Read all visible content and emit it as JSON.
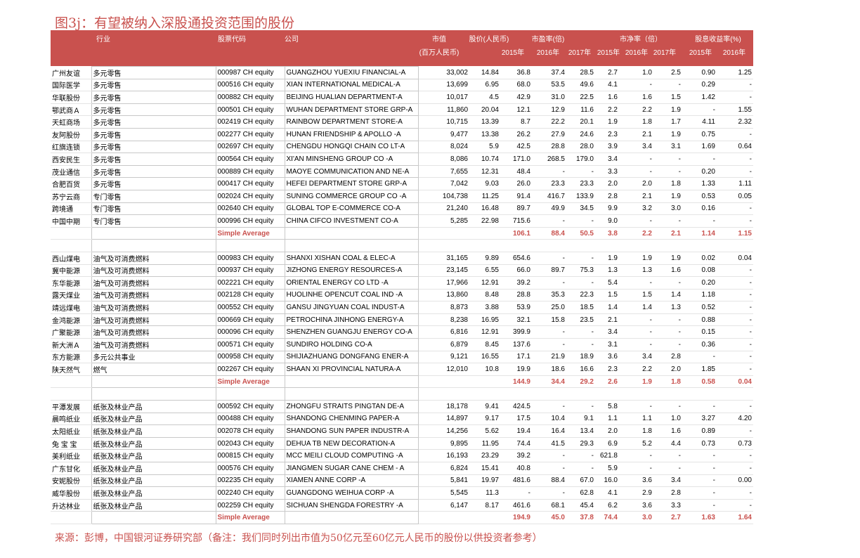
{
  "title": "图3j：有望被纳入深股通投资范围的股份",
  "header": {
    "industry": "行业",
    "code": "股票代码",
    "company": "公司",
    "mcap": "市值",
    "mcap_unit": "(百万人民币)",
    "price": "股价(人民币)",
    "pe": "市盈率(倍)",
    "pb": "市净率（倍）",
    "dy": "股息收益率(%)",
    "years": [
      "2015年",
      "2016年",
      "2017年",
      "2015年",
      "2016年",
      "2017年",
      "2015年",
      "2016年"
    ]
  },
  "groups": [
    {
      "rows": [
        [
          "广州友谊",
          "多元零售",
          "000987 CH equity",
          "GUANGZHOU YUEXIU FINANCIAL-A",
          "33,002",
          "14.84",
          "36.8",
          "37.4",
          "28.5",
          "2.7",
          "1.0",
          "2.5",
          "0.90",
          "1.25"
        ],
        [
          "国际医学",
          "多元零售",
          "000516 CH equity",
          "XIAN INTERNATIONAL MEDICAL-A",
          "13,699",
          "6.95",
          "68.0",
          "53.5",
          "49.6",
          "4.1",
          "-",
          "-",
          "0.29",
          "-"
        ],
        [
          "华联股份",
          "多元零售",
          "000882 CH equity",
          "BEIJING HUALIAN DEPARTMENT-A",
          "10,017",
          "4.5",
          "42.9",
          "31.0",
          "22.5",
          "1.6",
          "1.6",
          "1.5",
          "1.42",
          "-"
        ],
        [
          "鄂武商Ａ",
          "多元零售",
          "000501 CH equity",
          "WUHAN DEPARTMENT STORE GRP-A",
          "11,860",
          "20.04",
          "12.1",
          "12.9",
          "11.6",
          "2.2",
          "2.2",
          "1.9",
          "-",
          "1.55"
        ],
        [
          "天虹商场",
          "多元零售",
          "002419 CH equity",
          "RAINBOW DEPARTMENT STORE-A",
          "10,715",
          "13.39",
          "8.7",
          "22.2",
          "20.1",
          "1.9",
          "1.8",
          "1.7",
          "4.11",
          "2.32"
        ],
        [
          "友阿股份",
          "多元零售",
          "002277 CH equity",
          "HUNAN FRIENDSHIP & APOLLO -A",
          "9,477",
          "13.38",
          "26.2",
          "27.9",
          "24.6",
          "2.3",
          "2.1",
          "1.9",
          "0.75",
          "-"
        ],
        [
          "红旗连锁",
          "多元零售",
          "002697 CH equity",
          "CHENGDU HONGQI CHAIN CO LT-A",
          "8,024",
          "5.9",
          "42.5",
          "28.8",
          "28.0",
          "3.9",
          "3.4",
          "3.1",
          "1.69",
          "0.64"
        ],
        [
          "西安民生",
          "多元零售",
          "000564 CH equity",
          "XI'AN MINSHENG GROUP CO -A",
          "8,086",
          "10.74",
          "171.0",
          "268.5",
          "179.0",
          "3.4",
          "-",
          "-",
          "-",
          "-"
        ],
        [
          "茂业通信",
          "多元零售",
          "000889 CH equity",
          "MAOYE COMMUNICATION AND NE-A",
          "7,655",
          "12.31",
          "48.4",
          "-",
          "-",
          "3.3",
          "-",
          "-",
          "0.20",
          "-"
        ],
        [
          "合肥百货",
          "多元零售",
          "000417 CH equity",
          "HEFEI DEPARTMENT STORE GRP-A",
          "7,042",
          "9.03",
          "26.0",
          "23.3",
          "23.3",
          "2.0",
          "2.0",
          "1.8",
          "1.33",
          "1.11"
        ],
        [
          "苏宁云商",
          "专门零售",
          "002024 CH equity",
          "SUNING COMMERCE GROUP CO -A",
          "104,738",
          "11.25",
          "91.4",
          "416.7",
          "133.9",
          "2.8",
          "2.1",
          "1.9",
          "0.53",
          "0.05"
        ],
        [
          "跨境通",
          "专门零售",
          "002640 CH equity",
          "GLOBAL TOP E-COMMERCE CO-A",
          "21,240",
          "16.48",
          "89.7",
          "49.9",
          "34.5",
          "9.9",
          "3.2",
          "3.0",
          "0.16",
          "-"
        ],
        [
          "中国中期",
          "专门零售",
          "000996 CH equity",
          "CHINA CIFCO INVESTMENT CO-A",
          "5,285",
          "22.98",
          "715.6",
          "-",
          "-",
          "9.0",
          "-",
          "-",
          "-",
          "-"
        ]
      ],
      "average": {
        "label": "Simple Average",
        "values": [
          "106.1",
          "88.4",
          "50.5",
          "3.8",
          "2.2",
          "2.1",
          "1.14",
          "1.15"
        ]
      }
    },
    {
      "rows": [
        [
          "西山煤电",
          "油气及可消费燃料",
          "000983 CH equity",
          "SHANXI XISHAN COAL & ELEC-A",
          "31,165",
          "9.89",
          "654.6",
          "-",
          "-",
          "1.9",
          "1.9",
          "1.9",
          "0.02",
          "0.04"
        ],
        [
          "冀中能源",
          "油气及可消费燃料",
          "000937 CH equity",
          "JIZHONG ENERGY RESOURCES-A",
          "23,145",
          "6.55",
          "66.0",
          "89.7",
          "75.3",
          "1.3",
          "1.3",
          "1.6",
          "0.08",
          "-"
        ],
        [
          "东华能源",
          "油气及可消费燃料",
          "002221 CH equity",
          "ORIENTAL ENERGY CO LTD -A",
          "17,966",
          "12.91",
          "39.2",
          "-",
          "-",
          "5.4",
          "-",
          "-",
          "0.20",
          "-"
        ],
        [
          "露天煤业",
          "油气及可消费燃料",
          "002128 CH equity",
          "HUOLINHE OPENCUT COAL IND -A",
          "13,860",
          "8.48",
          "28.8",
          "35.3",
          "22.3",
          "1.5",
          "1.5",
          "1.4",
          "1.18",
          "-"
        ],
        [
          "靖远煤电",
          "油气及可消费燃料",
          "000552 CH equity",
          "GANSU JINGYUAN COAL INDUST-A",
          "8,873",
          "3.88",
          "53.9",
          "25.0",
          "18.5",
          "1.4",
          "1.4",
          "1.3",
          "0.52",
          "-"
        ],
        [
          "金鸿能源",
          "油气及可消费燃料",
          "000669 CH equity",
          "PETROCHINA JINHONG ENERGY-A",
          "8,238",
          "16.95",
          "32.1",
          "15.8",
          "23.5",
          "2.1",
          "-",
          "-",
          "0.88",
          "-"
        ],
        [
          "广聚能源",
          "油气及可消费燃料",
          "000096 CH equity",
          "SHENZHEN GUANGJU ENERGY CO-A",
          "6,816",
          "12.91",
          "399.9",
          "-",
          "-",
          "3.4",
          "-",
          "-",
          "0.15",
          "-"
        ],
        [
          "新大洲Ａ",
          "油气及可消费燃料",
          "000571 CH equity",
          "SUNDIRO HOLDING CO-A",
          "6,879",
          "8.45",
          "137.6",
          "-",
          "-",
          "3.1",
          "-",
          "-",
          "0.36",
          "-"
        ],
        [
          "东方能源",
          "多元公共事业",
          "000958 CH equity",
          "SHIJIAZHUANG DONGFANG ENER-A",
          "9,121",
          "16.55",
          "17.1",
          "21.9",
          "18.9",
          "3.6",
          "3.4",
          "2.8",
          "-",
          "-"
        ],
        [
          "陕天然气",
          "燃气",
          "002267 CH equity",
          "SHAAN XI PROVINCIAL NATURA-A",
          "12,010",
          "10.8",
          "19.9",
          "18.6",
          "16.6",
          "2.3",
          "2.2",
          "2.0",
          "1.85",
          "-"
        ]
      ],
      "average": {
        "label": "Simple Average",
        "values": [
          "144.9",
          "34.4",
          "29.2",
          "2.6",
          "1.9",
          "1.8",
          "0.58",
          "0.04"
        ]
      }
    },
    {
      "rows": [
        [
          "平潭发展",
          "纸张及林业产品",
          "000592 CH equity",
          "ZHONGFU STRAITS PINGTAN DE-A",
          "18,178",
          "9.41",
          "424.5",
          "-",
          "-",
          "5.8",
          "-",
          "-",
          "-",
          "-"
        ],
        [
          "晨鸣纸业",
          "纸张及林业产品",
          "000488 CH equity",
          "SHANDONG CHENMING PAPER-A",
          "14,897",
          "9.17",
          "17.5",
          "10.4",
          "9.1",
          "1.1",
          "1.1",
          "1.0",
          "3.27",
          "4.20"
        ],
        [
          "太阳纸业",
          "纸张及林业产品",
          "002078 CH equity",
          "SHANDONG SUN PAPER INDUSTR-A",
          "14,256",
          "5.62",
          "19.4",
          "16.4",
          "13.4",
          "2.0",
          "1.8",
          "1.6",
          "0.89",
          "-"
        ],
        [
          "兔 宝 宝",
          "纸张及林业产品",
          "002043 CH equity",
          "DEHUA TB NEW DECORATION-A",
          "9,895",
          "11.95",
          "74.4",
          "41.5",
          "29.3",
          "6.9",
          "5.2",
          "4.4",
          "0.73",
          "0.73"
        ],
        [
          "美利纸业",
          "纸张及林业产品",
          "000815 CH equity",
          "MCC MEILI CLOUD COMPUTING -A",
          "16,193",
          "23.29",
          "39.2",
          "-",
          "-",
          "621.8",
          "-",
          "-",
          "-",
          "-"
        ],
        [
          "广东甘化",
          "纸张及林业产品",
          "000576 CH equity",
          "JIANGMEN SUGAR CANE CHEM - A",
          "6,824",
          "15.41",
          "40.8",
          "-",
          "-",
          "5.9",
          "-",
          "-",
          "-",
          "-"
        ],
        [
          "安妮股份",
          "纸张及林业产品",
          "002235 CH equity",
          "XIAMEN ANNE CORP -A",
          "5,841",
          "19.97",
          "481.6",
          "88.4",
          "67.0",
          "16.0",
          "3.6",
          "3.4",
          "-",
          "0.00"
        ],
        [
          "威华股份",
          "纸张及林业产品",
          "002240 CH equity",
          "GUANGDONG WEIHUA CORP -A",
          "5,545",
          "11.3",
          "-",
          "-",
          "62.8",
          "4.1",
          "2.9",
          "2.8",
          "-",
          "-"
        ],
        [
          "升达林业",
          "纸张及林业产品",
          "002259 CH equity",
          "SICHUAN SHENGDA FORESTRY -A",
          "6,147",
          "8.17",
          "461.6",
          "68.1",
          "45.4",
          "6.2",
          "3.6",
          "3.3",
          "-",
          "-"
        ]
      ],
      "average": {
        "label": "Simple Average",
        "values": [
          "194.9",
          "45.0",
          "37.8",
          "74.4",
          "3.0",
          "2.7",
          "1.63",
          "1.64"
        ]
      }
    }
  ],
  "footer": "来源：彭博，中国银河证券研究部（备注：我们同时列出市值为50亿元至60亿元人民币的股份以供投资者参考）"
}
